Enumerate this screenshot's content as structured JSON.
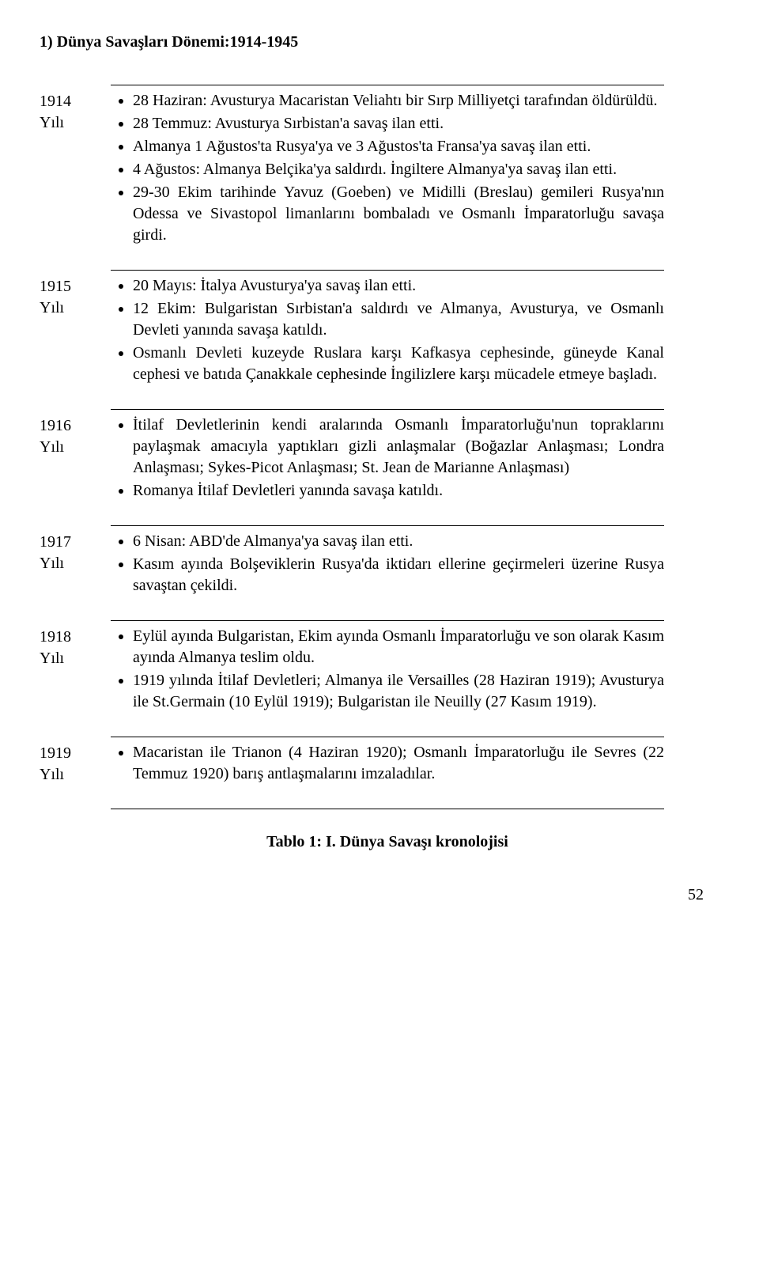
{
  "heading": "1) Dünya Savaşları Dönemi:1914-1945",
  "rows": [
    {
      "year": "1914",
      "unit": "Yılı",
      "items": [
        "28 Haziran: Avusturya Macaristan Veliahtı bir Sırp Milliyetçi tarafından öldürüldü.",
        "28 Temmuz: Avusturya Sırbistan'a savaş ilan etti.",
        "Almanya 1 Ağustos'ta Rusya'ya ve 3 Ağustos'ta Fransa'ya savaş ilan etti.",
        "4 Ağustos: Almanya Belçika'ya saldırdı. İngiltere Almanya'ya savaş ilan etti.",
        "29-30 Ekim tarihinde Yavuz (Goeben) ve Midilli (Breslau) gemileri Rusya'nın Odessa ve Sivastopol limanlarını bombaladı ve Osmanlı İmparatorluğu savaşa girdi."
      ]
    },
    {
      "year": "1915",
      "unit": "Yılı",
      "items": [
        "20 Mayıs: İtalya Avusturya'ya savaş ilan etti.",
        "12 Ekim: Bulgaristan Sırbistan'a saldırdı ve Almanya, Avusturya, ve Osmanlı Devleti yanında savaşa katıldı.",
        "Osmanlı Devleti kuzeyde Ruslara karşı Kafkasya cephesinde, güneyde Kanal cephesi ve batıda Çanakkale cephesinde İngilizlere karşı mücadele etmeye başladı."
      ]
    },
    {
      "year": "1916",
      "unit": "Yılı",
      "items": [
        "İtilaf Devletlerinin kendi aralarında Osmanlı İmparatorluğu'nun topraklarını paylaşmak amacıyla yaptıkları gizli anlaşmalar (Boğazlar Anlaşması; Londra Anlaşması; Sykes-Picot Anlaşması; St. Jean de Marianne Anlaşması)",
        "Romanya İtilaf Devletleri yanında savaşa katıldı."
      ]
    },
    {
      "year": "1917",
      "unit": "Yılı",
      "items": [
        "6 Nisan: ABD'de Almanya'ya savaş ilan etti.",
        "Kasım ayında Bolşeviklerin Rusya'da iktidarı ellerine geçirmeleri üzerine Rusya savaştan çekildi."
      ]
    },
    {
      "year": "1918",
      "unit": "Yılı",
      "items": [
        "Eylül ayında Bulgaristan, Ekim ayında Osmanlı İmparatorluğu ve son olarak Kasım ayında Almanya teslim oldu.",
        "1919 yılında İtilaf Devletleri; Almanya ile Versailles (28 Haziran 1919); Avusturya ile St.Germain (10 Eylül 1919); Bulgaristan ile Neuilly (27 Kasım 1919)."
      ]
    },
    {
      "year": "1919",
      "unit": "Yılı",
      "items": [
        "Macaristan ile Trianon (4 Haziran 1920); Osmanlı İmparatorluğu ile Sevres (22 Temmuz 1920) barış antlaşmalarını imzaladılar."
      ]
    }
  ],
  "caption": "Tablo 1: I. Dünya Savaşı kronolojisi",
  "page_number": "52"
}
